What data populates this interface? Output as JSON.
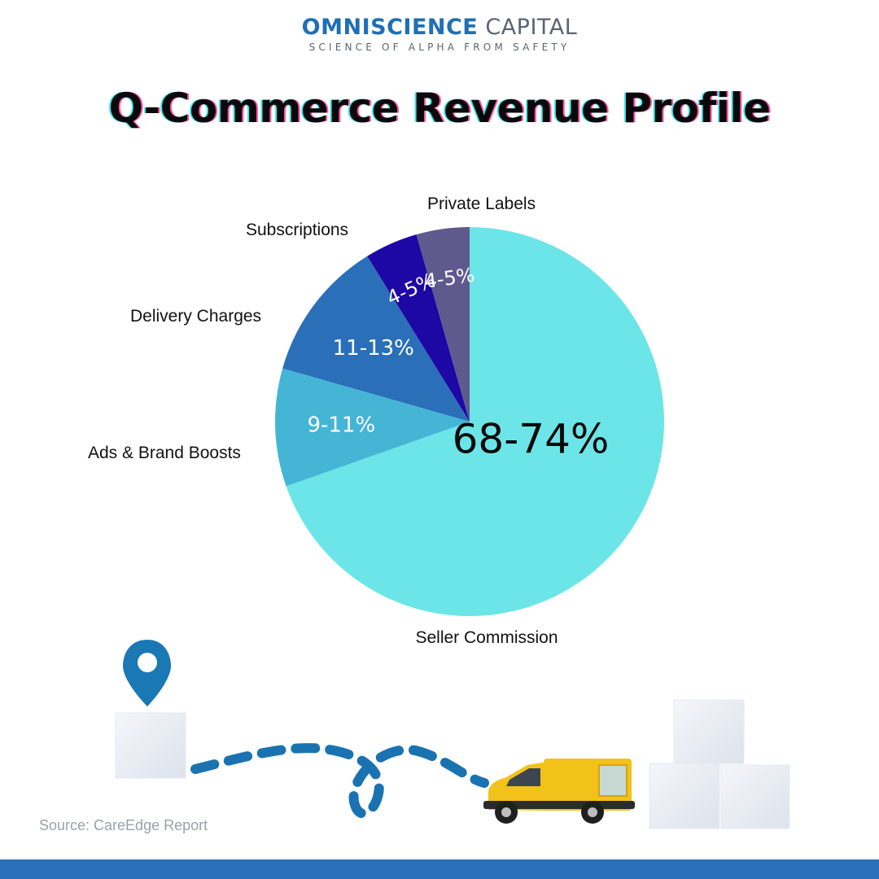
{
  "brand": {
    "name_bold": "OMNISCIENCE",
    "name_light": "CAPITAL",
    "tagline": "SCIENCE OF ALPHA FROM SAFETY"
  },
  "colors": {
    "brand_blue": "#1f6fb5",
    "brand_gray": "#5b6472",
    "footer": "#2a6fb8"
  },
  "chart_data": {
    "type": "pie",
    "title": "Q-Commerce Revenue Profile",
    "source": "Source: CareEdge Report",
    "slices": [
      {
        "label": "Seller Commission",
        "value_label": "68-74%",
        "value": 71,
        "color": "#6ce5e8"
      },
      {
        "label": "Ads & Brand Boosts",
        "value_label": "9-11%",
        "value": 10,
        "color": "#45b5d6"
      },
      {
        "label": "Delivery Charges",
        "value_label": "11-13%",
        "value": 12,
        "color": "#2a6fb8"
      },
      {
        "label": "Subscriptions",
        "value_label": "4-5%",
        "value": 4.5,
        "color": "#1d07a5"
      },
      {
        "label": "Private Labels",
        "value_label": "4-5%",
        "value": 4.5,
        "color": "#5e5a8e"
      }
    ]
  },
  "icons": [
    "location-pin-icon",
    "box-icon",
    "delivery-van-icon",
    "dashed-route-icon"
  ]
}
